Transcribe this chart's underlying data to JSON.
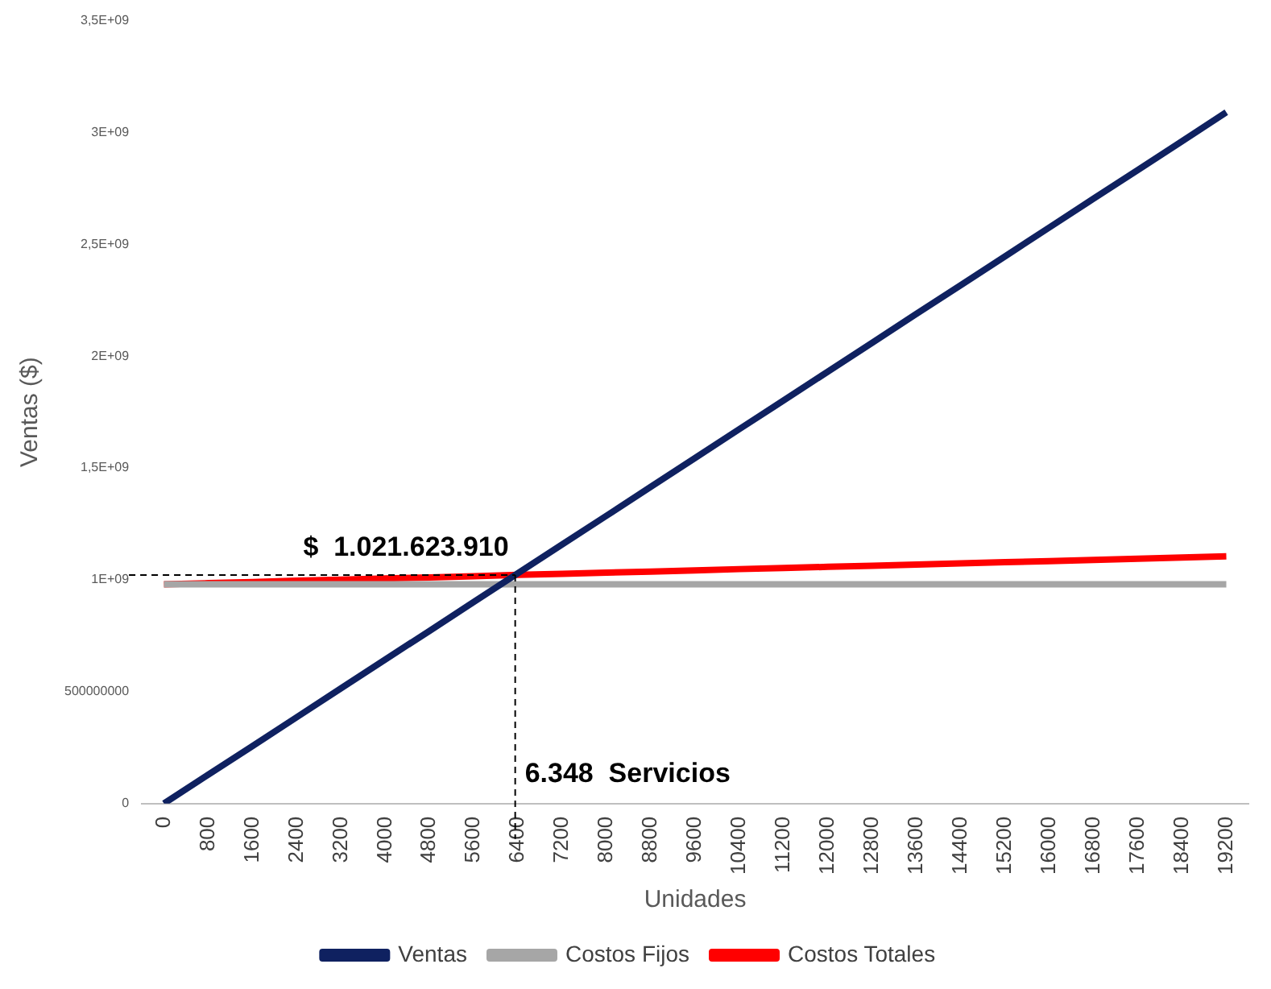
{
  "chart_data": {
    "type": "line",
    "xlabel": "Unidades",
    "ylabel": "Ventas ($)",
    "categories": [
      "0",
      "800",
      "1600",
      "2400",
      "3200",
      "4000",
      "4800",
      "5600",
      "6400",
      "7200",
      "8000",
      "8800",
      "9600",
      "10400",
      "11200",
      "12000",
      "12800",
      "13600",
      "14400",
      "15200",
      "16000",
      "16800",
      "17600",
      "18400",
      "19200"
    ],
    "series": [
      {
        "name": "Ventas",
        "color": "#0f2160",
        "values": [
          0,
          129000000,
          257000000,
          386000000,
          515000000,
          644000000,
          772000000,
          901000000,
          1030000000,
          1159000000,
          1287000000,
          1416000000,
          1545000000,
          1674000000,
          1802000000,
          1931000000,
          2060000000,
          2189000000,
          2317000000,
          2446000000,
          2575000000,
          2704000000,
          2832000000,
          2961000000,
          3090000000
        ]
      },
      {
        "name": "Costos Fijos",
        "color": "#a6a6a6",
        "values": [
          980000000,
          980000000,
          980000000,
          980000000,
          980000000,
          980000000,
          980000000,
          980000000,
          980000000,
          980000000,
          980000000,
          980000000,
          980000000,
          980000000,
          980000000,
          980000000,
          980000000,
          980000000,
          980000000,
          980000000,
          980000000,
          980000000,
          980000000,
          980000000,
          980000000
        ]
      },
      {
        "name": "Costos Totales",
        "color": "#ff0000",
        "values": [
          980000000,
          985000000,
          990000000,
          996000000,
          1001000000,
          1006000000,
          1011000000,
          1016000000,
          1022000000,
          1027000000,
          1032000000,
          1037000000,
          1042000000,
          1048000000,
          1053000000,
          1058000000,
          1063000000,
          1068000000,
          1074000000,
          1079000000,
          1084000000,
          1089000000,
          1094000000,
          1100000000,
          1105000000
        ]
      }
    ],
    "ylim": [
      0,
      3500000000
    ],
    "yticks": [
      {
        "value": 0,
        "label": "0"
      },
      {
        "value": 500000000,
        "label": "500000000"
      },
      {
        "value": 1000000000,
        "label": "1E+09"
      },
      {
        "value": 1500000000,
        "label": "1,5E+09"
      },
      {
        "value": 2000000000,
        "label": "2E+09"
      },
      {
        "value": 2500000000,
        "label": "2,5E+09"
      },
      {
        "value": 3000000000,
        "label": "3E+09"
      },
      {
        "value": 3500000000,
        "label": "3,5E+09"
      }
    ],
    "ref_lines": [
      {
        "axis": "y",
        "value": 1021623910,
        "label": "$  1.021.623.910",
        "color": "#000000",
        "line_style": "dashed"
      }
    ],
    "annotations": [
      "6.348  Servicios"
    ],
    "grid": false,
    "legend": "bottom",
    "marker": "none",
    "line_style": "solid"
  }
}
